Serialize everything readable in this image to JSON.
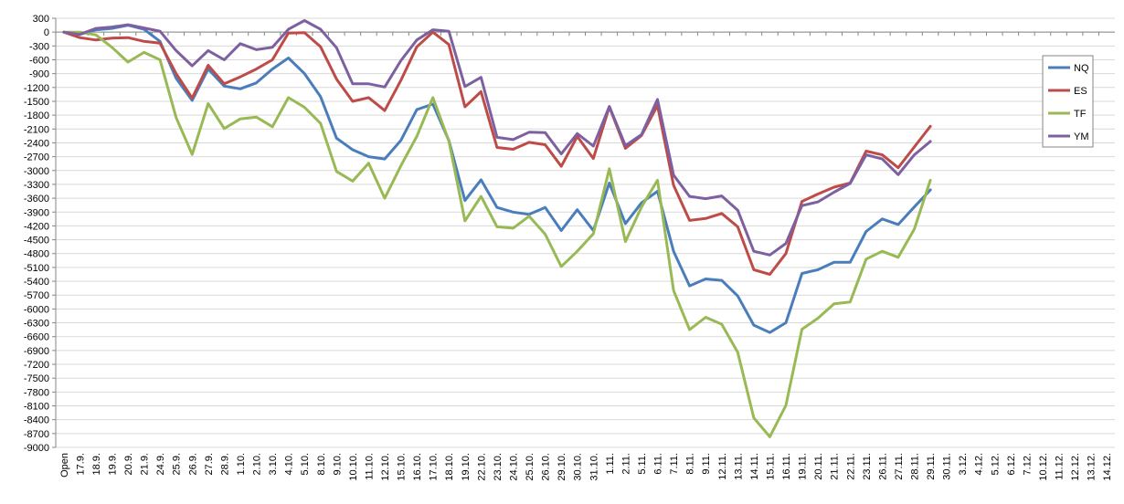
{
  "chart_data": {
    "type": "line",
    "ylim": [
      -9000,
      300
    ],
    "ytick_step": 300,
    "grid": "horizontal",
    "legend_position": "right",
    "categories": [
      "Open",
      "17.9.",
      "18.9.",
      "19.9.",
      "20.9.",
      "21.9.",
      "24.9.",
      "25.9.",
      "26.9.",
      "27.9.",
      "28.9.",
      "1.10.",
      "2.10.",
      "3.10.",
      "4.10.",
      "5.10.",
      "8.10.",
      "9.10.",
      "10.10.",
      "11.10.",
      "12.10.",
      "15.10.",
      "16.10.",
      "17.10.",
      "18.10.",
      "19.10.",
      "22.10.",
      "23.10.",
      "24.10.",
      "25.10.",
      "26.10.",
      "29.10.",
      "30.10.",
      "31.10.",
      "1.11.",
      "2.11.",
      "5.11.",
      "6.11.",
      "7.11.",
      "8.11.",
      "9.11.",
      "12.11.",
      "13.11.",
      "14.11.",
      "15.11.",
      "16.11.",
      "19.11.",
      "20.11.",
      "21.11.",
      "22.11.",
      "23.11.",
      "26.11.",
      "27.11.",
      "28.11.",
      "29.11.",
      "30.11.",
      "3.12.",
      "4.12.",
      "5.12.",
      "6.12.",
      "7.12.",
      "10.12.",
      "11.12.",
      "12.12.",
      "13.12.",
      "14.12."
    ],
    "series": [
      {
        "name": "NQ",
        "color": "#4a7ebb",
        "values": [
          0,
          -50,
          50,
          80,
          150,
          60,
          -200,
          -1000,
          -1480,
          -800,
          -1170,
          -1230,
          -1100,
          -800,
          -560,
          -900,
          -1400,
          -2300,
          -2550,
          -2700,
          -2750,
          -2350,
          -1680,
          -1560,
          -2350,
          -3650,
          -3200,
          -3800,
          -3900,
          -3950,
          -3800,
          -4300,
          -3850,
          -4300,
          -3270,
          -4150,
          -3700,
          -3450,
          -4750,
          -5500,
          -5350,
          -5380,
          -5720,
          -6350,
          -6510,
          -6300,
          -5230,
          -5150,
          -4990,
          -4990,
          -4320,
          -4050,
          -4170,
          -3790,
          -3420,
          null,
          null,
          null,
          null,
          null,
          null,
          null,
          null,
          null,
          null,
          null
        ]
      },
      {
        "name": "ES",
        "color": "#be4b48",
        "values": [
          0,
          -120,
          -170,
          -130,
          -120,
          -200,
          -240,
          -900,
          -1430,
          -720,
          -1120,
          -970,
          -800,
          -600,
          -20,
          -10,
          -320,
          -1020,
          -1500,
          -1420,
          -1700,
          -1050,
          -320,
          0,
          -270,
          -1620,
          -1290,
          -2500,
          -2540,
          -2390,
          -2440,
          -2910,
          -2260,
          -2740,
          -1620,
          -2520,
          -2240,
          -1590,
          -3320,
          -4080,
          -4040,
          -3930,
          -4220,
          -5150,
          -5250,
          -4800,
          -3670,
          -3510,
          -3360,
          -3270,
          -2580,
          -2660,
          -2940,
          -2490,
          -2040,
          null,
          null,
          null,
          null,
          null,
          null,
          null,
          null,
          null,
          null,
          null
        ]
      },
      {
        "name": "TF",
        "color": "#98b954",
        "values": [
          0,
          0,
          -60,
          -330,
          -650,
          -440,
          -600,
          -1850,
          -2650,
          -1550,
          -2090,
          -1880,
          -1840,
          -2050,
          -1420,
          -1630,
          -1980,
          -3020,
          -3230,
          -2840,
          -3600,
          -2900,
          -2260,
          -1420,
          -2360,
          -4090,
          -3560,
          -4220,
          -4250,
          -3990,
          -4380,
          -5080,
          -4750,
          -4370,
          -2960,
          -4540,
          -3790,
          -3210,
          -5600,
          -6450,
          -6180,
          -6330,
          -6940,
          -8360,
          -8770,
          -8090,
          -6440,
          -6200,
          -5890,
          -5850,
          -4920,
          -4750,
          -4880,
          -4270,
          -3210,
          null,
          null,
          null,
          null,
          null,
          null,
          null,
          null,
          null,
          null,
          null
        ]
      },
      {
        "name": "YM",
        "color": "#7d60a0",
        "values": [
          0,
          -50,
          80,
          110,
          160,
          90,
          20,
          -400,
          -730,
          -400,
          -600,
          -250,
          -380,
          -330,
          60,
          250,
          60,
          -340,
          -1120,
          -1120,
          -1190,
          -620,
          -170,
          50,
          20,
          -1180,
          -980,
          -2280,
          -2330,
          -2170,
          -2180,
          -2640,
          -2200,
          -2470,
          -1610,
          -2460,
          -2220,
          -1460,
          -3100,
          -3560,
          -3610,
          -3550,
          -3860,
          -4750,
          -4830,
          -4580,
          -3760,
          -3680,
          -3470,
          -3280,
          -2660,
          -2750,
          -3090,
          -2660,
          -2370,
          null,
          null,
          null,
          null,
          null,
          null,
          null,
          null,
          null,
          null,
          null
        ]
      }
    ]
  }
}
